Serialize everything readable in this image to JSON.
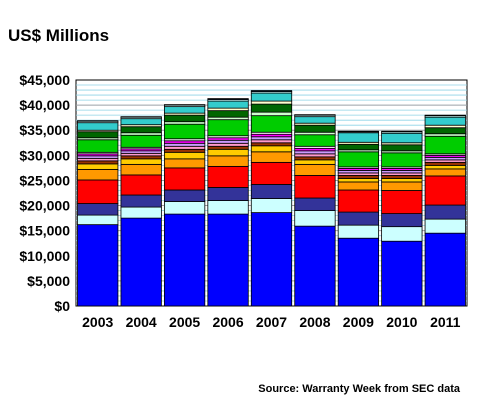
{
  "chart_data": {
    "type": "bar",
    "stacked": true,
    "title": "US$ Millions",
    "source": "Source: Warranty Week from SEC data",
    "ylim": [
      0,
      45000
    ],
    "ytick_step": 5000,
    "ytick_labels": [
      "$0",
      "$5,000",
      "$10,000",
      "$15,000",
      "$20,000",
      "$25,000",
      "$30,000",
      "$35,000",
      "$40,000",
      "$45,000"
    ],
    "grid": true,
    "legend": "none",
    "categories": [
      "2003",
      "2004",
      "2005",
      "2006",
      "2007",
      "2008",
      "2009",
      "2010",
      "2011"
    ],
    "series": [
      {
        "color": "#0000ff",
        "values": [
          16200,
          17500,
          18300,
          18300,
          18600,
          15900,
          13500,
          12900,
          14500
        ]
      },
      {
        "color": "#ccffff",
        "values": [
          1900,
          2200,
          2500,
          2700,
          2800,
          3100,
          2600,
          2900,
          2800
        ]
      },
      {
        "color": "#333399",
        "values": [
          2300,
          2400,
          2300,
          2600,
          2800,
          2500,
          2600,
          2600,
          2800
        ]
      },
      {
        "color": "#ff0000",
        "values": [
          4700,
          4000,
          4400,
          4200,
          4400,
          4500,
          4400,
          4600,
          5800
        ]
      },
      {
        "color": "#ff9900",
        "values": [
          2100,
          2100,
          1800,
          2100,
          2100,
          2200,
          1600,
          1700,
          1400
        ]
      },
      {
        "color": "#ffcc00",
        "values": [
          1100,
          1100,
          1300,
          1300,
          1200,
          900,
          700,
          700,
          700
        ]
      },
      {
        "color": "#993300",
        "values": [
          600,
          600,
          600,
          600,
          600,
          600,
          600,
          600,
          600
        ]
      },
      {
        "color": "#ff99cc",
        "values": [
          500,
          500,
          600,
          600,
          600,
          600,
          500,
          500,
          500
        ]
      },
      {
        "color": "#cc99ff",
        "values": [
          500,
          500,
          600,
          600,
          600,
          600,
          500,
          500,
          500
        ]
      },
      {
        "color": "#ff00ff",
        "values": [
          400,
          400,
          500,
          500,
          500,
          500,
          400,
          400,
          400
        ]
      },
      {
        "color": "#ffffff",
        "values": [
          300,
          300,
          400,
          400,
          400,
          400,
          300,
          300,
          300
        ]
      },
      {
        "color": "#00cc00",
        "values": [
          2500,
          2400,
          2900,
          3200,
          3300,
          2300,
          3000,
          2800,
          3500
        ]
      },
      {
        "color": "#ccffcc",
        "values": [
          400,
          500,
          500,
          500,
          700,
          500,
          400,
          400,
          500
        ]
      },
      {
        "color": "#006600",
        "values": [
          1200,
          1200,
          1300,
          1300,
          1600,
          1400,
          1100,
          1200,
          1200
        ]
      },
      {
        "color": "#ffffcc",
        "values": [
          300,
          400,
          400,
          500,
          600,
          400,
          400,
          400,
          500
        ]
      },
      {
        "color": "#33cccc",
        "values": [
          1500,
          1200,
          1300,
          1400,
          1600,
          1300,
          1900,
          1900,
          1600
        ]
      },
      {
        "color": "#ccffff",
        "values": [
          300,
          300,
          300,
          300,
          300,
          300,
          200,
          300,
          300
        ]
      },
      {
        "color": "#003366",
        "values": [
          100,
          100,
          100,
          200,
          200,
          100,
          100,
          100,
          100
        ]
      }
    ]
  }
}
